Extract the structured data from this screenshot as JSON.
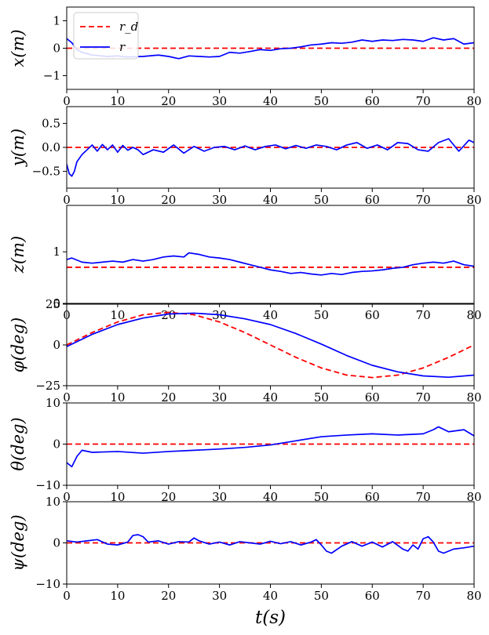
{
  "figure": {
    "xlabel": "t(s)",
    "x_ticks": [
      0,
      10,
      20,
      30,
      40,
      50,
      60,
      70,
      80
    ],
    "x_tick_labels": [
      "0",
      "10",
      "20",
      "30",
      "40",
      "50",
      "60",
      "70",
      "80"
    ],
    "colors": {
      "reference": "#ff0000",
      "response": "#0000ff"
    },
    "legend": {
      "location": "upper-left of first panel",
      "entries": [
        {
          "label": "r_d",
          "series": "reference",
          "style": "dashed"
        },
        {
          "label": "r",
          "series": "response",
          "style": "solid"
        }
      ]
    }
  },
  "chart_data": [
    {
      "type": "line",
      "name": "x",
      "ylabel": "x(m)",
      "xlabel": "",
      "xlim": [
        0,
        80
      ],
      "ylim": [
        -1.5,
        1.5
      ],
      "y_ticks": [
        -1,
        0,
        1
      ],
      "y_tick_labels": [
        "−1",
        "0",
        "1"
      ],
      "series": [
        {
          "name": "r_d",
          "style": "dashed",
          "x": [
            0,
            80
          ],
          "y": [
            0,
            0
          ]
        },
        {
          "name": "r",
          "style": "solid",
          "x": [
            0,
            1,
            2,
            3,
            5,
            8,
            10,
            12,
            15,
            18,
            20,
            22,
            24,
            26,
            28,
            30,
            32,
            34,
            36,
            38,
            40,
            42,
            44,
            46,
            48,
            50,
            52,
            54,
            56,
            58,
            60,
            62,
            64,
            66,
            68,
            70,
            72,
            74,
            76,
            78,
            80
          ],
          "y": [
            0.35,
            0.2,
            -0.05,
            -0.15,
            -0.25,
            -0.3,
            -0.28,
            -0.32,
            -0.3,
            -0.25,
            -0.3,
            -0.38,
            -0.28,
            -0.3,
            -0.32,
            -0.3,
            -0.15,
            -0.18,
            -0.12,
            -0.05,
            -0.08,
            -0.02,
            0.0,
            0.05,
            0.12,
            0.15,
            0.2,
            0.18,
            0.22,
            0.3,
            0.25,
            0.3,
            0.28,
            0.32,
            0.3,
            0.25,
            0.38,
            0.3,
            0.35,
            0.15,
            0.2
          ]
        }
      ]
    },
    {
      "type": "line",
      "name": "y",
      "ylabel": "y(m)",
      "xlabel": "",
      "xlim": [
        0,
        80
      ],
      "ylim": [
        -0.85,
        0.85
      ],
      "y_ticks": [
        -0.5,
        0.0,
        0.5
      ],
      "y_tick_labels": [
        "−0.5",
        "0.0",
        "0.5"
      ],
      "series": [
        {
          "name": "r_d",
          "style": "dashed",
          "x": [
            0,
            80
          ],
          "y": [
            0,
            0
          ]
        },
        {
          "name": "r",
          "style": "solid",
          "x": [
            0,
            0.5,
            1,
            1.5,
            2,
            3,
            4,
            5,
            6,
            7,
            8,
            9,
            10,
            11,
            12,
            13,
            14,
            15,
            17,
            19,
            21,
            23,
            25,
            27,
            29,
            31,
            33,
            35,
            37,
            39,
            41,
            43,
            45,
            47,
            49,
            51,
            53,
            55,
            57,
            59,
            61,
            63,
            65,
            67,
            69,
            71,
            73,
            75,
            77,
            79,
            80
          ],
          "y": [
            -0.35,
            -0.55,
            -0.6,
            -0.5,
            -0.3,
            -0.15,
            -0.05,
            0.05,
            -0.08,
            0.06,
            -0.05,
            0.05,
            -0.1,
            0.04,
            -0.06,
            0.0,
            -0.05,
            -0.15,
            -0.05,
            -0.1,
            0.05,
            -0.12,
            0.02,
            -0.08,
            0.0,
            0.02,
            -0.05,
            0.03,
            -0.05,
            0.02,
            0.05,
            -0.03,
            0.04,
            -0.02,
            0.05,
            0.02,
            -0.05,
            0.05,
            0.1,
            -0.02,
            0.05,
            -0.05,
            0.1,
            0.08,
            -0.05,
            -0.08,
            0.1,
            0.18,
            -0.08,
            0.15,
            0.1
          ]
        }
      ]
    },
    {
      "type": "line",
      "name": "z",
      "ylabel": "z(m)",
      "xlabel": "",
      "xlim": [
        0,
        80
      ],
      "ylim": [
        0,
        1.9
      ],
      "y_ticks": [
        0,
        1
      ],
      "y_tick_labels": [
        "0",
        "1"
      ],
      "series": [
        {
          "name": "r_d",
          "style": "dashed",
          "x": [
            0,
            80
          ],
          "y": [
            0.7,
            0.7
          ]
        },
        {
          "name": "r",
          "style": "solid",
          "x": [
            0,
            1,
            3,
            5,
            7,
            9,
            11,
            13,
            15,
            17,
            19,
            21,
            23,
            24,
            26,
            28,
            30,
            32,
            34,
            36,
            38,
            40,
            42,
            44,
            46,
            48,
            50,
            52,
            54,
            56,
            58,
            60,
            62,
            64,
            66,
            68,
            70,
            72,
            74,
            76,
            78,
            80
          ],
          "y": [
            0.85,
            0.88,
            0.8,
            0.78,
            0.8,
            0.82,
            0.8,
            0.85,
            0.82,
            0.85,
            0.9,
            0.92,
            0.9,
            0.98,
            0.95,
            0.9,
            0.88,
            0.85,
            0.8,
            0.75,
            0.7,
            0.65,
            0.62,
            0.58,
            0.6,
            0.57,
            0.55,
            0.58,
            0.56,
            0.6,
            0.62,
            0.63,
            0.65,
            0.68,
            0.7,
            0.75,
            0.78,
            0.8,
            0.78,
            0.82,
            0.75,
            0.72
          ]
        }
      ]
    },
    {
      "type": "line",
      "name": "phi",
      "ylabel": "φ(deg)",
      "xlabel": "",
      "xlim": [
        0,
        80
      ],
      "ylim": [
        -25,
        25
      ],
      "y_ticks": [
        -25,
        0,
        25
      ],
      "y_tick_labels": [
        "−25",
        "0",
        "25"
      ],
      "series": [
        {
          "name": "r_d",
          "style": "dashed",
          "x": [
            0,
            5,
            10,
            15,
            20,
            25,
            30,
            35,
            40,
            45,
            50,
            55,
            60,
            65,
            70,
            75,
            80
          ],
          "y": [
            0,
            7.6,
            14.1,
            18.5,
            20.0,
            18.5,
            14.1,
            7.6,
            0,
            -7.6,
            -14.1,
            -18.5,
            -20.0,
            -18.5,
            -14.1,
            -7.6,
            0
          ]
        },
        {
          "name": "r",
          "style": "solid",
          "x": [
            0,
            5,
            10,
            15,
            20,
            25,
            30,
            35,
            40,
            45,
            50,
            55,
            60,
            65,
            70,
            75,
            80
          ],
          "y": [
            -1,
            6.5,
            12.5,
            16.5,
            19.0,
            19.5,
            18.5,
            16.0,
            12.5,
            7.0,
            0.5,
            -6.5,
            -12.5,
            -16.5,
            -19.0,
            -19.8,
            -18.5
          ]
        }
      ]
    },
    {
      "type": "line",
      "name": "theta",
      "ylabel": "θ(deg)",
      "xlabel": "",
      "xlim": [
        0,
        80
      ],
      "ylim": [
        -10,
        10
      ],
      "y_ticks": [
        -10,
        0,
        10
      ],
      "y_tick_labels": [
        "−10",
        "0",
        "10"
      ],
      "series": [
        {
          "name": "r_d",
          "style": "dashed",
          "x": [
            0,
            80
          ],
          "y": [
            0,
            0
          ]
        },
        {
          "name": "r",
          "style": "solid",
          "x": [
            0,
            1,
            2,
            3,
            5,
            10,
            15,
            20,
            25,
            30,
            35,
            40,
            45,
            50,
            55,
            60,
            65,
            70,
            72,
            73,
            75,
            78,
            80
          ],
          "y": [
            -4.5,
            -5.5,
            -3.0,
            -1.5,
            -2.0,
            -1.8,
            -2.2,
            -1.8,
            -1.5,
            -1.2,
            -0.8,
            -0.2,
            0.8,
            1.8,
            2.2,
            2.5,
            2.2,
            2.5,
            3.5,
            4.2,
            3.0,
            3.5,
            2.0
          ]
        }
      ]
    },
    {
      "type": "line",
      "name": "psi",
      "ylabel": "ψ(deg)",
      "xlabel": "t(s)",
      "xlim": [
        0,
        80
      ],
      "ylim": [
        -10,
        10
      ],
      "y_ticks": [
        -10,
        0,
        10
      ],
      "y_tick_labels": [
        "−10",
        "0",
        "10"
      ],
      "series": [
        {
          "name": "r_d",
          "style": "dashed",
          "x": [
            0,
            80
          ],
          "y": [
            0,
            0
          ]
        },
        {
          "name": "r",
          "style": "solid",
          "x": [
            0,
            2,
            4,
            6,
            8,
            10,
            12,
            13,
            14,
            15,
            16,
            18,
            20,
            22,
            24,
            25,
            26,
            28,
            30,
            32,
            34,
            36,
            38,
            40,
            42,
            44,
            46,
            48,
            49,
            50,
            51,
            52,
            54,
            56,
            58,
            60,
            62,
            64,
            66,
            67,
            68,
            69,
            70,
            71,
            72,
            73,
            74,
            76,
            78,
            80
          ],
          "y": [
            0.5,
            0.2,
            0.5,
            0.8,
            -0.3,
            -0.5,
            0.2,
            1.8,
            2.0,
            1.5,
            0.2,
            0.5,
            -0.3,
            0.3,
            0.2,
            1.2,
            0.5,
            -0.3,
            0.2,
            -0.5,
            0.3,
            0.0,
            -0.3,
            0.4,
            -0.2,
            0.3,
            -0.5,
            0.2,
            0.8,
            -0.5,
            -2.0,
            -2.5,
            -0.8,
            0.3,
            -0.8,
            0.2,
            -1.0,
            0.3,
            -1.5,
            -2.0,
            -0.5,
            -1.5,
            1.0,
            1.5,
            0.2,
            -2.0,
            -2.5,
            -1.5,
            -1.2,
            -0.8
          ]
        }
      ]
    }
  ]
}
